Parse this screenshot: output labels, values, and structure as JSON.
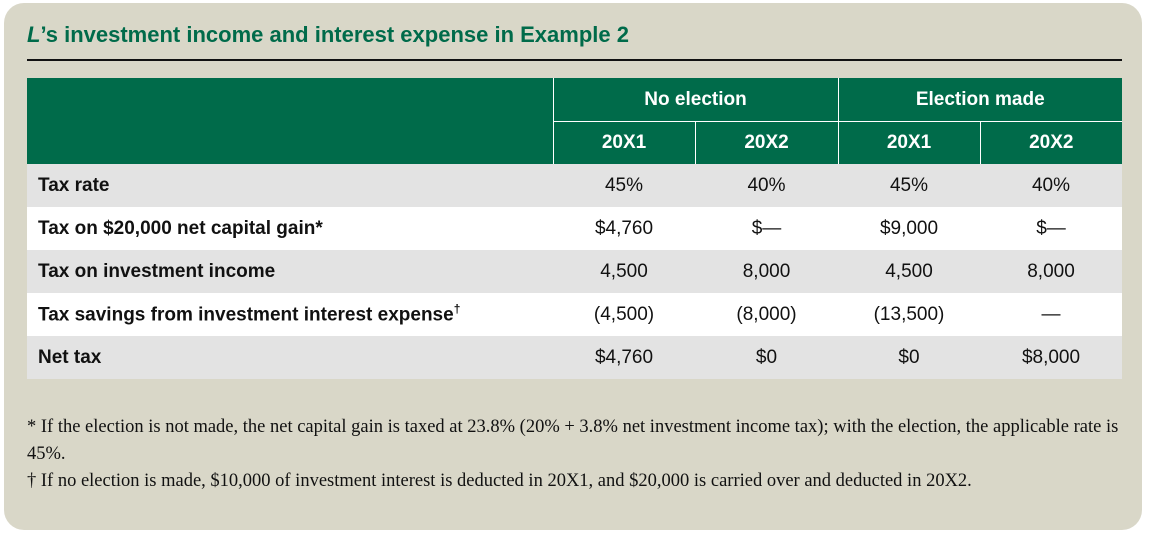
{
  "title": {
    "italic": "L",
    "rest": "’s investment income and interest expense in Example 2"
  },
  "table": {
    "group_headers": [
      "No election",
      "Election made"
    ],
    "year_headers": [
      "20X1",
      "20X2",
      "20X1",
      "20X2"
    ],
    "rows": [
      {
        "label": "Tax rate",
        "mark": "",
        "values": [
          "45%",
          "40%",
          "45%",
          "40%"
        ]
      },
      {
        "label": "Tax on $20,000 net capital gain*",
        "mark": "",
        "values": [
          "$4,760",
          "$—",
          "$9,000",
          "$—"
        ]
      },
      {
        "label": "Tax on investment income",
        "mark": "",
        "values": [
          "4,500",
          "8,000",
          "4,500",
          "8,000"
        ]
      },
      {
        "label": "Tax savings from investment interest expense",
        "mark": "†",
        "values": [
          "(4,500)",
          "(8,000)",
          "(13,500)",
          "—"
        ]
      },
      {
        "label": "Net tax",
        "mark": "",
        "values": [
          "$4,760",
          "$0",
          "$0",
          "$8,000"
        ]
      }
    ]
  },
  "notes": [
    "* If the election is not made, the net capital gain is taxed at 23.8% (20% + 3.8% net investment income tax); with the election, the applicable rate is 45%.",
    "† If no election is made, $10,000 of investment interest is deducted in 20X1, and $20,000 is carried over and deducted in 20X2."
  ],
  "colors": {
    "accent_green": "#006b4a",
    "panel_beige": "#d9d7c8",
    "row_stripe": "#e3e3e3"
  }
}
